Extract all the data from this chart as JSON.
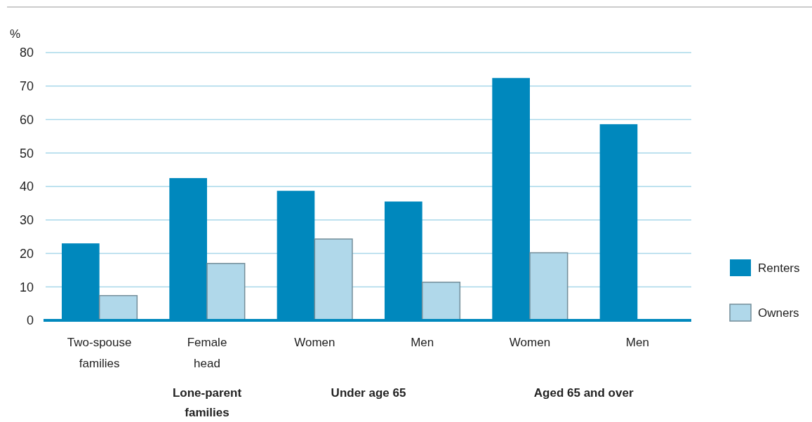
{
  "chart_data": {
    "type": "bar",
    "ylabel": "%",
    "categories": [
      "Two-spouse families",
      "Female head",
      "Women",
      "Men",
      "Women",
      "Men"
    ],
    "series": [
      {
        "name": "Renters",
        "color": "#0088bd",
        "values": [
          23.0,
          42.5,
          38.7,
          35.5,
          72.4,
          58.6
        ]
      },
      {
        "name": "Owners",
        "color": "#b0d8ea",
        "values": [
          7.4,
          17.0,
          24.3,
          11.4,
          20.2,
          null
        ]
      }
    ],
    "ylim": [
      0,
      80
    ],
    "yticks": [
      0,
      10,
      20,
      30,
      40,
      50,
      60,
      70,
      80
    ],
    "grid": "y",
    "legend": "right",
    "annotations": [
      "Lone-parent families",
      "Under age 65",
      "Aged 65 and over"
    ]
  }
}
